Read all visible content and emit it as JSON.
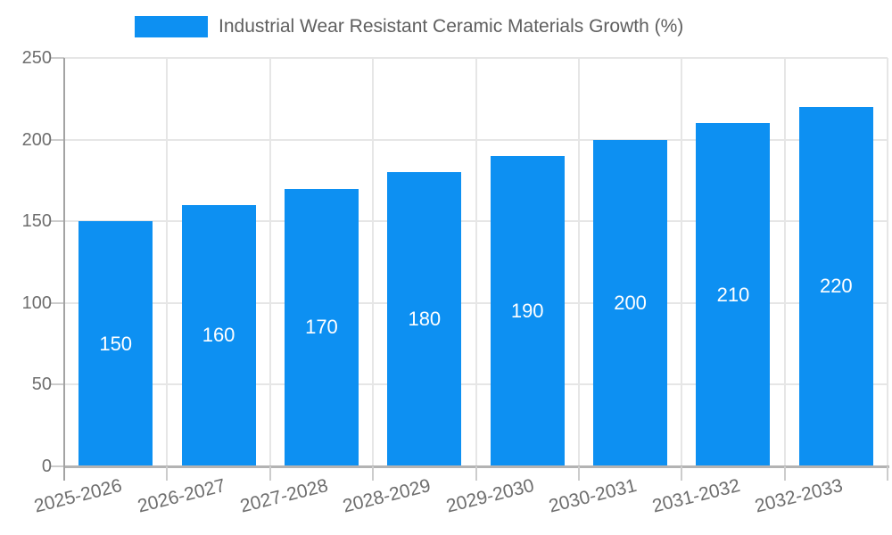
{
  "legend": {
    "label": "Industrial Wear Resistant Ceramic Materials Growth (%)",
    "swatch_color": "#0d90f2"
  },
  "chart_data": {
    "type": "bar",
    "title": "Industrial Wear Resistant Ceramic Materials Growth (%)",
    "categories": [
      "2025-2026",
      "2026-2027",
      "2027-2028",
      "2028-2029",
      "2029-2030",
      "2030-2031",
      "2031-2032",
      "2032-2033"
    ],
    "values": [
      150,
      160,
      170,
      180,
      190,
      200,
      210,
      220
    ],
    "xlabel": "",
    "ylabel": "",
    "ylim": [
      0,
      250
    ],
    "yticks": [
      0,
      50,
      100,
      150,
      200,
      250
    ],
    "grid": true,
    "legend_position": "top",
    "value_labels": "inside-center",
    "bar_color": "#0d90f2",
    "value_label_color": "#ffffff"
  },
  "colors": {
    "background": "#ffffff",
    "grid": "#e6e6e6",
    "x_axis_line": "#b3b3b3",
    "y_axis_line": "#a3a3a3",
    "tick": "#cccccc",
    "tick_label_text": "#6e6e6e",
    "title_text": "#5f5f5f"
  }
}
